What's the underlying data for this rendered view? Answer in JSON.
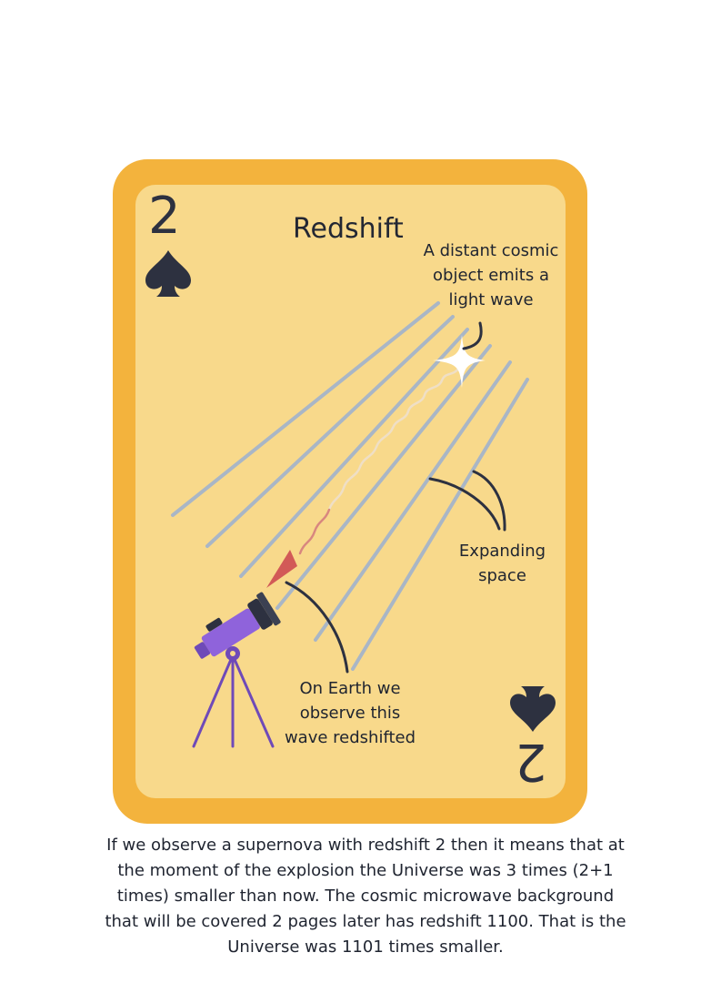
{
  "card": {
    "rank": "2",
    "suit_icon": "spade-icon",
    "title": "Redshift",
    "colors": {
      "border": "#f3b33d",
      "face": "#f8d98b",
      "ink": "#2d3140",
      "rays": "#a9b6c6",
      "arrow": "#d25a57"
    }
  },
  "labels": {
    "source": [
      "A distant cosmic",
      "object emits a",
      "light wave"
    ],
    "space": [
      "Expanding",
      "space"
    ],
    "earth": [
      "On Earth we",
      "observe this",
      "wave redshifted"
    ]
  },
  "caption": [
    "If we observe a supernova with redshift 2 then it means that at",
    "the moment of the explosion the Universe was 3 times (2+1",
    "times)  smaller than now. The cosmic microwave background",
    "that will be covered 2 pages later has redshift 1100. That is the",
    "Universe was 1101 times smaller."
  ]
}
